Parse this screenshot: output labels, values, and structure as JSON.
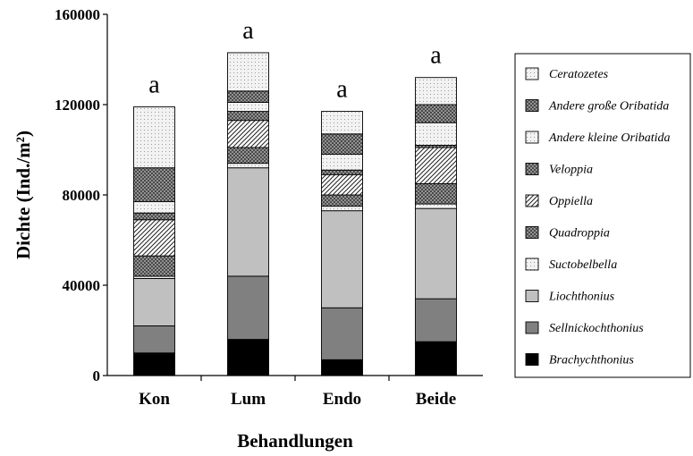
{
  "chart_data": {
    "type": "bar",
    "stacked": true,
    "categories": [
      "Kon",
      "Lum",
      "Endo",
      "Beide"
    ],
    "xlabel": "Behandlungen",
    "ylabel": "Dichte (Ind./m²)",
    "ylim": [
      0,
      160000
    ],
    "yticks": [
      "0",
      "40000",
      "80000",
      "120000",
      "160000"
    ],
    "annotations": [
      "a",
      "a",
      "a",
      "a"
    ],
    "legend_position": "right",
    "series": [
      {
        "name": "Brachychthonius",
        "values": [
          10000,
          16000,
          7000,
          15000
        ]
      },
      {
        "name": "Sellnickochthonius",
        "values": [
          12000,
          28000,
          23000,
          19000
        ]
      },
      {
        "name": "Liochthonius",
        "values": [
          21000,
          48000,
          43000,
          40000
        ]
      },
      {
        "name": "Suctobelbella",
        "values": [
          1000,
          2000,
          2000,
          2000
        ]
      },
      {
        "name": "Quadroppia",
        "values": [
          9000,
          7000,
          5000,
          9000
        ]
      },
      {
        "name": "Oppiella",
        "values": [
          16000,
          12000,
          9000,
          16000
        ]
      },
      {
        "name": "Veloppia",
        "values": [
          3000,
          4000,
          2000,
          1000
        ]
      },
      {
        "name": "Andere kleine Oribatida",
        "values": [
          5000,
          4000,
          7000,
          10000
        ]
      },
      {
        "name": "Andere große Oribatida",
        "values": [
          15000,
          5000,
          9000,
          8000
        ]
      },
      {
        "name": "Ceratozetes",
        "values": [
          27000,
          17000,
          10000,
          12000
        ]
      }
    ],
    "colors": {
      "Brachychthonius": "#000000",
      "Sellnickochthonius": "#808080",
      "Liochthonius": "#c0c0c0",
      "Suctobelbella": "#d8d8d8",
      "Quadroppia": "#7a7a7a",
      "Oppiella": "#bdbdbd",
      "Veloppia": "#8f8f8f",
      "Andere kleine Oribatida": "#e6e6e6",
      "Andere große Oribatida": "#b8b8b8",
      "Ceratozetes": "#f4f4f4"
    },
    "patterns": {
      "Brachychthonius": "solid",
      "Sellnickochthonius": "solid",
      "Liochthonius": "solid",
      "Suctobelbella": "dots",
      "Quadroppia": "crosshatch",
      "Oppiella": "diagonal",
      "Veloppia": "crosshatch",
      "Andere kleine Oribatida": "dots",
      "Andere große Oribatida": "crosshatch",
      "Ceratozetes": "dots"
    }
  }
}
